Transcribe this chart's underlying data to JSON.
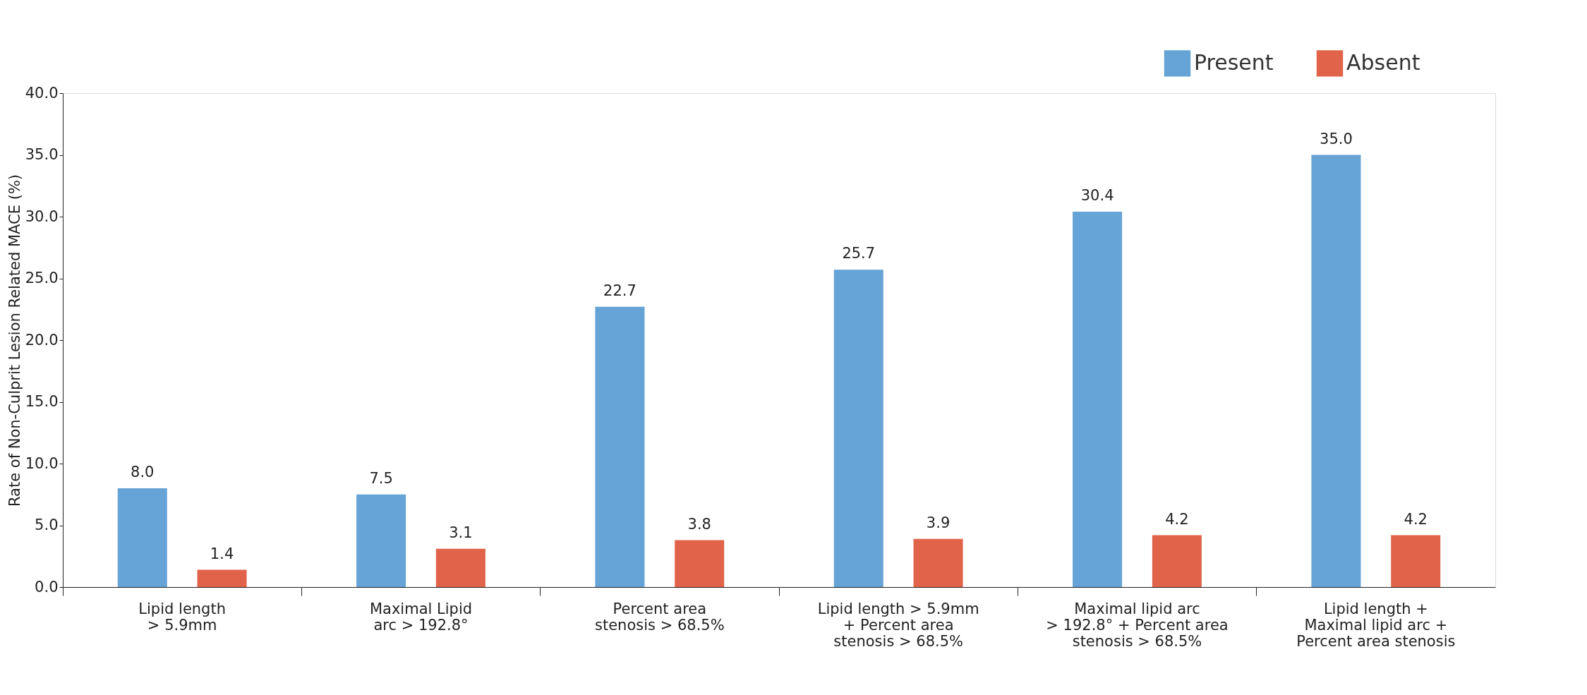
{
  "chart_data": {
    "type": "bar",
    "ylabel": "Rate of Non-Culprit Lesion Related MACE (%)",
    "categories": [
      "Lipid length\n> 5.9mm",
      "Maximal Lipid\narc > 192.8°",
      "Percent area\nstenosis > 68.5%",
      "Lipid length > 5.9mm\n+ Percent area\nstenosis > 68.5%",
      "Maximal lipid arc\n> 192.8° + Percent area\nstenosis > 68.5%",
      "Lipid length +\nMaximal lipid arc +\nPercent area stenosis"
    ],
    "series": [
      {
        "name": "Present",
        "color": "#66a3d6",
        "values": [
          8.0,
          7.5,
          22.7,
          25.7,
          30.4,
          35.0
        ],
        "value_labels": [
          "8.0",
          "7.5",
          "22.7",
          "25.7",
          "30.4",
          "35.0"
        ]
      },
      {
        "name": "Absent",
        "color": "#e0634a",
        "values": [
          1.4,
          3.1,
          3.8,
          3.9,
          4.2,
          4.2
        ],
        "value_labels": [
          "1.4",
          "3.1",
          "3.8",
          "3.9",
          "4.2",
          "4.2"
        ]
      }
    ],
    "ylim": [
      0,
      40
    ],
    "yticks": [
      {
        "value": 0,
        "label": "0.0"
      },
      {
        "value": 5,
        "label": "5.0"
      },
      {
        "value": 10,
        "label": "10.0"
      },
      {
        "value": 15,
        "label": "15.0"
      },
      {
        "value": 20,
        "label": "20.0"
      },
      {
        "value": 25,
        "label": "25.0"
      },
      {
        "value": 30,
        "label": "30.0"
      },
      {
        "value": 35,
        "label": "35.0"
      },
      {
        "value": 40,
        "label": "40.0"
      }
    ],
    "grid": false,
    "legend": "top right"
  }
}
